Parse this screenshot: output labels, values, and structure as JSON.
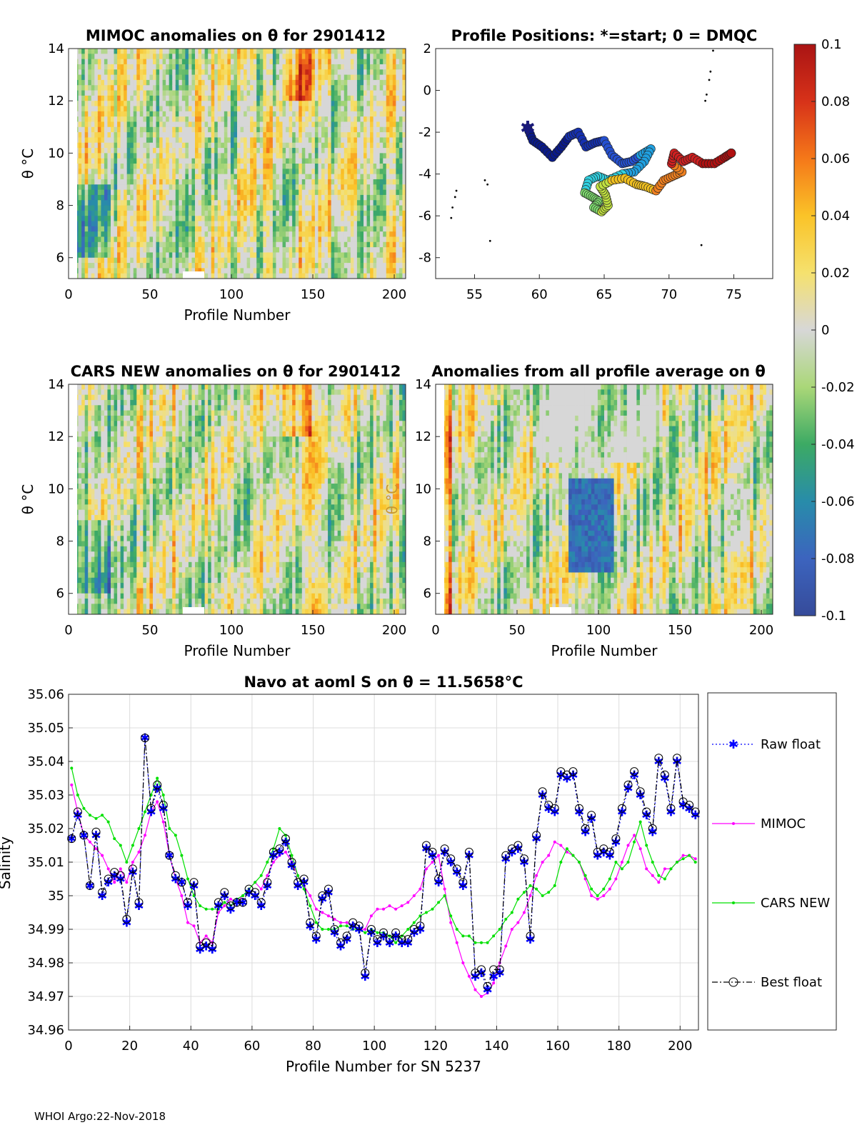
{
  "footer": "WHOI Argo:22-Nov-2018",
  "colorbar": {
    "ticks": [
      "0.1",
      "0.08",
      "0.06",
      "0.04",
      "0.02",
      "0",
      "-0.02",
      "-0.04",
      "-0.06",
      "-0.08",
      "-0.1"
    ],
    "range": [
      -0.1,
      0.1
    ]
  },
  "chart_data": [
    {
      "type": "heatmap",
      "title": "MIMOC anomalies on θ  for 2901412",
      "xlabel": "Profile Number",
      "ylabel": "θ °C",
      "xlim": [
        0,
        207
      ],
      "ylim": [
        5.2,
        14
      ],
      "xticks": [
        "0",
        "50",
        "100",
        "150",
        "200"
      ],
      "yticks": [
        "14",
        "12",
        "10",
        "8",
        "6"
      ],
      "seed": 3
    },
    {
      "type": "scatter",
      "title": "Profile Positions: *=start; 0 = DMQC",
      "xlim": [
        52,
        78
      ],
      "ylim": [
        -9,
        2
      ],
      "xticks": [
        "55",
        "60",
        "65",
        "70",
        "75"
      ],
      "yticks": [
        "2",
        "0",
        "-2",
        "-4",
        "-6",
        "-8"
      ],
      "track": [
        [
          59.1,
          -1.8
        ],
        [
          59.5,
          -2.4
        ],
        [
          60.2,
          -2.7
        ],
        [
          61,
          -3.2
        ],
        [
          61.7,
          -2.7
        ],
        [
          62.3,
          -2.2
        ],
        [
          63,
          -2
        ],
        [
          63.6,
          -2.7
        ],
        [
          64.3,
          -2.5
        ],
        [
          65,
          -2.4
        ],
        [
          65.6,
          -3.1
        ],
        [
          66.4,
          -3.5
        ],
        [
          67.1,
          -3.4
        ],
        [
          67.8,
          -3.1
        ],
        [
          68.6,
          -2.8
        ],
        [
          68.1,
          -3.4
        ],
        [
          67.3,
          -3.9
        ],
        [
          66.4,
          -4
        ],
        [
          65.3,
          -4.3
        ],
        [
          64.5,
          -4.1
        ],
        [
          63.8,
          -4.3
        ],
        [
          63.5,
          -4.9
        ],
        [
          64.1,
          -5.1
        ],
        [
          64.6,
          -5.3
        ],
        [
          64.2,
          -5.6
        ],
        [
          64.8,
          -5.8
        ],
        [
          65.3,
          -5.5
        ],
        [
          65.1,
          -5
        ],
        [
          64.7,
          -4.6
        ],
        [
          65.6,
          -4.3
        ],
        [
          66.6,
          -4.2
        ],
        [
          67.5,
          -4.5
        ],
        [
          68.2,
          -4.6
        ],
        [
          69,
          -4.8
        ],
        [
          69.6,
          -4.3
        ],
        [
          70.3,
          -4.1
        ],
        [
          71,
          -3.9
        ],
        [
          70.2,
          -3.5
        ],
        [
          70.4,
          -3
        ],
        [
          71.1,
          -3.4
        ],
        [
          71.8,
          -3.2
        ],
        [
          72.6,
          -3.5
        ],
        [
          73.5,
          -3.5
        ],
        [
          74.3,
          -3.2
        ],
        [
          74.8,
          -3
        ]
      ],
      "coast_points": [
        [
          53.2,
          -6.1
        ],
        [
          53.3,
          -5.6
        ],
        [
          53.5,
          -5.1
        ],
        [
          53.6,
          -4.8
        ],
        [
          55.8,
          -4.3
        ],
        [
          56,
          -4.5
        ],
        [
          56.2,
          -7.2
        ],
        [
          72.5,
          -7.4
        ],
        [
          72.8,
          -0.5
        ],
        [
          72.9,
          -0.2
        ],
        [
          73.1,
          0.5
        ],
        [
          73.2,
          0.9
        ],
        [
          73.4,
          1.9
        ]
      ]
    },
    {
      "type": "heatmap",
      "title": "CARS NEW anomalies on θ for 2901412",
      "xlabel": "Profile Number",
      "ylabel": "θ °C",
      "xlim": [
        0,
        207
      ],
      "ylim": [
        5.2,
        14
      ],
      "xticks": [
        "0",
        "50",
        "100",
        "150",
        "200"
      ],
      "yticks": [
        "14",
        "12",
        "10",
        "8",
        "6"
      ],
      "seed": 7
    },
    {
      "type": "heatmap",
      "title": "Anomalies from all profile average on θ",
      "xlabel": "Profile Number",
      "ylabel": "θ °C",
      "xlim": [
        0,
        207
      ],
      "ylim": [
        5.2,
        14
      ],
      "xticks": [
        "0",
        "50",
        "100",
        "150",
        "200"
      ],
      "yticks": [
        "14",
        "12",
        "10",
        "8",
        "6"
      ],
      "seed": 11
    },
    {
      "type": "line",
      "title": "Navo at aoml S on θ = 11.5658°C",
      "xlabel": "Profile Number for SN 5237",
      "ylabel": "Salinity",
      "xlim": [
        0,
        206
      ],
      "ylim": [
        34.96,
        35.06
      ],
      "xticks": [
        "0",
        "20",
        "40",
        "60",
        "80",
        "100",
        "120",
        "140",
        "160",
        "180",
        "200"
      ],
      "yticks": [
        "35.06",
        "35.05",
        "35.04",
        "35.03",
        "35.02",
        "35.01",
        "35",
        "34.99",
        "34.98",
        "34.97",
        "34.96"
      ],
      "legend": [
        "Raw float",
        "MIMOC",
        "CARS NEW",
        "Best float"
      ],
      "x": [
        1,
        3,
        5,
        7,
        9,
        11,
        13,
        15,
        17,
        19,
        21,
        23,
        25,
        27,
        29,
        31,
        33,
        35,
        37,
        39,
        41,
        43,
        45,
        47,
        49,
        51,
        53,
        55,
        57,
        59,
        61,
        63,
        65,
        67,
        69,
        71,
        73,
        75,
        77,
        79,
        81,
        83,
        85,
        87,
        89,
        91,
        93,
        95,
        97,
        99,
        101,
        103,
        105,
        107,
        109,
        111,
        113,
        115,
        117,
        119,
        121,
        123,
        125,
        127,
        129,
        131,
        133,
        135,
        137,
        139,
        141,
        143,
        145,
        147,
        149,
        151,
        153,
        155,
        157,
        159,
        161,
        163,
        165,
        167,
        169,
        171,
        173,
        175,
        177,
        179,
        181,
        183,
        185,
        187,
        189,
        191,
        193,
        195,
        197,
        199,
        201,
        203,
        205
      ],
      "series": [
        {
          "name": "Raw float",
          "values": [
            35.017,
            35.024,
            35.018,
            35.003,
            35.018,
            35.0,
            35.004,
            35.006,
            35.005,
            34.992,
            35.007,
            34.997,
            35.047,
            35.025,
            35.032,
            35.026,
            35.012,
            35.005,
            35.004,
            34.997,
            35.003,
            34.984,
            34.985,
            34.984,
            34.997,
            35.0,
            34.996,
            34.998,
            34.998,
            35.001,
            35.0,
            34.997,
            35.003,
            35.012,
            35.013,
            35.016,
            35.009,
            35.003,
            35.004,
            34.991,
            34.987,
            34.999,
            35.001,
            34.989,
            34.985,
            34.987,
            34.991,
            34.99,
            34.976,
            34.989,
            34.986,
            34.988,
            34.986,
            34.988,
            34.986,
            34.986,
            34.989,
            34.99,
            35.014,
            35.012,
            35.004,
            35.013,
            35.01,
            35.007,
            35.003,
            35.012,
            34.976,
            34.977,
            34.972,
            34.976,
            34.977,
            35.011,
            35.013,
            35.014,
            35.01,
            34.987,
            35.017,
            35.03,
            35.026,
            35.025,
            35.036,
            35.035,
            35.036,
            35.025,
            35.019,
            35.023,
            35.012,
            35.013,
            35.012,
            35.016,
            35.025,
            35.032,
            35.036,
            35.03,
            35.024,
            35.019,
            35.04,
            35.035,
            35.025,
            35.04,
            35.027,
            35.026,
            35.024
          ]
        },
        {
          "name": "MIMOC",
          "values": [
            35.033,
            35.025,
            35.018,
            35.016,
            35.014,
            35.012,
            35.008,
            35.004,
            35.008,
            35.004,
            35.01,
            35.013,
            35.018,
            35.025,
            35.028,
            35.022,
            35.012,
            35.005,
            35.0,
            34.992,
            34.991,
            34.986,
            34.988,
            34.986,
            34.995,
            34.997,
            34.999,
            34.998,
            35.0,
            35.002,
            35.004,
            35.002,
            35.006,
            35.01,
            35.012,
            35.013,
            35.01,
            35.006,
            35.003,
            35.0,
            34.996,
            34.995,
            34.994,
            34.993,
            34.992,
            34.992,
            34.991,
            34.99,
            34.99,
            34.994,
            34.996,
            34.996,
            34.997,
            34.996,
            34.997,
            34.998,
            35.0,
            35.002,
            35.008,
            35.01,
            35.012,
            35.002,
            34.992,
            34.986,
            34.98,
            34.976,
            34.972,
            34.97,
            34.971,
            34.974,
            34.98,
            34.985,
            34.99,
            34.992,
            34.995,
            35.0,
            35.006,
            35.01,
            35.012,
            35.016,
            35.015,
            35.013,
            35.012,
            35.01,
            35.005,
            35.0,
            34.999,
            35.0,
            35.002,
            35.005,
            35.01,
            35.015,
            35.018,
            35.014,
            35.008,
            35.006,
            35.004,
            35.008,
            35.008,
            35.01,
            35.012,
            35.012,
            35.011
          ]
        },
        {
          "name": "CARS NEW",
          "values": [
            35.038,
            35.03,
            35.026,
            35.024,
            35.023,
            35.024,
            35.022,
            35.017,
            35.015,
            35.01,
            35.015,
            35.02,
            35.025,
            35.03,
            35.035,
            35.03,
            35.02,
            35.018,
            35.012,
            35.005,
            35.0,
            34.997,
            34.996,
            34.996,
            34.996,
            34.998,
            34.997,
            34.999,
            35.0,
            35.002,
            35.004,
            35.006,
            35.01,
            35.014,
            35.02,
            35.018,
            35.012,
            35.006,
            35.002,
            34.997,
            34.992,
            34.99,
            34.99,
            34.99,
            34.991,
            34.991,
            34.99,
            34.99,
            34.989,
            34.99,
            34.989,
            34.989,
            34.988,
            34.986,
            34.988,
            34.99,
            34.992,
            34.994,
            34.995,
            34.996,
            34.998,
            35.0,
            34.994,
            34.99,
            34.988,
            34.988,
            34.986,
            34.986,
            34.986,
            34.988,
            34.99,
            34.993,
            34.995,
            34.999,
            35.001,
            35.003,
            35.002,
            35.0,
            35.001,
            35.003,
            35.01,
            35.014,
            35.012,
            35.01,
            35.006,
            35.002,
            35.0,
            35.002,
            35.005,
            35.01,
            35.008,
            35.01,
            35.016,
            35.022,
            35.015,
            35.01,
            35.006,
            35.005,
            35.008,
            35.01,
            35.011,
            35.012,
            35.01
          ]
        },
        {
          "name": "Best float",
          "values": [
            35.017,
            35.025,
            35.018,
            35.003,
            35.019,
            35.001,
            35.005,
            35.007,
            35.006,
            34.993,
            35.008,
            34.998,
            35.047,
            35.026,
            35.033,
            35.027,
            35.012,
            35.006,
            35.004,
            34.998,
            35.004,
            34.985,
            34.986,
            34.985,
            34.998,
            35.001,
            34.997,
            34.998,
            34.998,
            35.002,
            35.001,
            34.998,
            35.004,
            35.013,
            35.014,
            35.017,
            35.01,
            35.004,
            35.005,
            34.992,
            34.988,
            35.0,
            35.002,
            34.99,
            34.986,
            34.988,
            34.992,
            34.991,
            34.977,
            34.99,
            34.987,
            34.989,
            34.987,
            34.989,
            34.987,
            34.987,
            34.99,
            34.991,
            35.015,
            35.013,
            35.005,
            35.014,
            35.011,
            35.008,
            35.004,
            35.013,
            34.977,
            34.978,
            34.973,
            34.978,
            34.978,
            35.012,
            35.014,
            35.015,
            35.011,
            34.988,
            35.018,
            35.031,
            35.027,
            35.026,
            35.037,
            35.036,
            35.037,
            35.026,
            35.02,
            35.024,
            35.013,
            35.014,
            35.013,
            35.017,
            35.026,
            35.033,
            35.037,
            35.031,
            35.025,
            35.02,
            35.041,
            35.036,
            35.026,
            35.041,
            35.028,
            35.027,
            35.025
          ]
        }
      ]
    }
  ]
}
